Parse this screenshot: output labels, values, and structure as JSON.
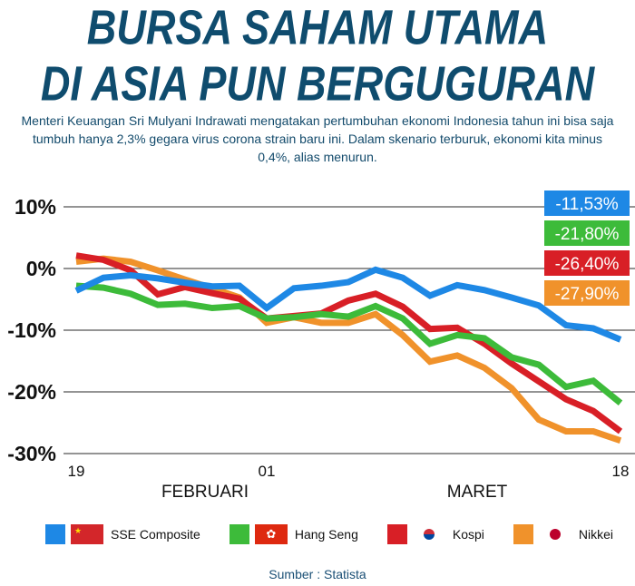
{
  "header": {
    "title_line1": "BURSA SAHAM UTAMA",
    "title_line2": "DI ASIA PUN BERGUGURAN",
    "subtitle": "Menteri Keuangan Sri Mulyani Indrawati mengatakan pertumbuhan ekonomi Indonesia tahun ini bisa saja tumbuh hanya 2,3% gegara virus corona strain baru ini. Dalam skenario terburuk, ekonomi kita minus 0,4%, alias menurun."
  },
  "source": "Sumber : Statista",
  "chart_data": {
    "type": "line",
    "title": "",
    "xlabel": "",
    "ylabel": "",
    "ylim": [
      -30,
      10
    ],
    "yticks": [
      10,
      0,
      -10,
      -20,
      -30
    ],
    "ytick_labels": [
      "10%",
      "0%",
      "-10%",
      "-20%",
      "-30%"
    ],
    "xtick_labels": [
      {
        "index": 0,
        "label": "19"
      },
      {
        "index": 7,
        "label": "01"
      },
      {
        "index": 20,
        "label": "18"
      }
    ],
    "months": [
      {
        "index": 5,
        "label": "FEBRUARI"
      },
      {
        "index": 15,
        "label": "MARET"
      }
    ],
    "grid": true,
    "legend": "bottom",
    "series": [
      {
        "name": "SSE Composite",
        "color": "#1e88e5",
        "end_label": "-11,53%",
        "values": [
          -3.6,
          -1.5,
          -1.1,
          -1.6,
          -2.3,
          -2.9,
          -2.8,
          -6.4,
          -3.2,
          -2.8,
          -2.2,
          -0.2,
          -1.5,
          -4.4,
          -2.7,
          -3.5,
          -4.7,
          -6.0,
          -9.2,
          -9.7,
          -11.53
        ]
      },
      {
        "name": "Hang Seng",
        "color": "#3dbb3a",
        "end_label": "-21,80%",
        "values": [
          -2.8,
          -3.1,
          -4.1,
          -5.9,
          -5.7,
          -6.4,
          -6.1,
          -8.1,
          -7.9,
          -7.4,
          -7.8,
          -6.1,
          -8.1,
          -12.2,
          -10.8,
          -11.3,
          -14.4,
          -15.6,
          -19.2,
          -18.2,
          -21.8
        ]
      },
      {
        "name": "Kospi",
        "color": "#d81f26",
        "end_label": "-26,40%",
        "values": [
          2.1,
          1.4,
          -0.3,
          -4.2,
          -3.0,
          -4.0,
          -4.9,
          -8.1,
          -7.7,
          -7.3,
          -5.2,
          -4.1,
          -6.2,
          -9.8,
          -9.6,
          -12.2,
          -15.4,
          -18.3,
          -21.2,
          -23.1,
          -26.4
        ]
      },
      {
        "name": "Nikkei",
        "color": "#f0922b",
        "end_label": "-27,90%",
        "values": [
          1.1,
          1.6,
          1.1,
          -0.3,
          -1.8,
          -3.2,
          -4.7,
          -8.8,
          -7.9,
          -8.8,
          -8.8,
          -7.4,
          -10.8,
          -15.1,
          -14.1,
          -16.1,
          -19.4,
          -24.5,
          -26.4,
          -26.4,
          -27.9
        ]
      }
    ]
  }
}
